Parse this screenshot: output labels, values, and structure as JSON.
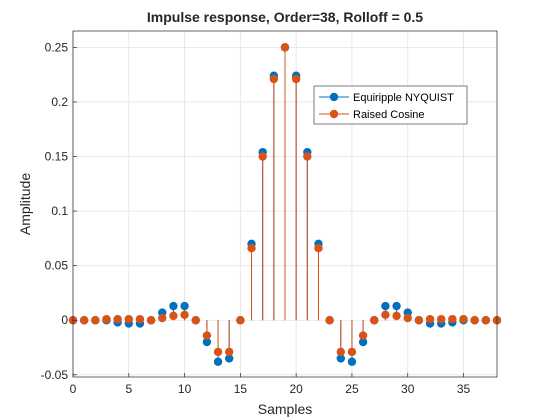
{
  "chart_data": {
    "type": "stem",
    "title": "Impulse response, Order=38, Rolloff = 0.5",
    "xlabel": "Samples",
    "ylabel": "Amplitude",
    "xlim": [
      0,
      38
    ],
    "ylim": [
      -0.052,
      0.265
    ],
    "xticks": [
      0,
      5,
      10,
      15,
      20,
      25,
      30,
      35
    ],
    "yticks": [
      -0.05,
      0,
      0.05,
      0.1,
      0.15,
      0.2,
      0.25
    ],
    "ytick_labels": [
      "-0.05",
      "0",
      "0.05",
      "0.1",
      "0.15",
      "0.2",
      "0.25"
    ],
    "grid": true,
    "legend_position": "top-right",
    "x": [
      0,
      1,
      2,
      3,
      4,
      5,
      6,
      7,
      8,
      9,
      10,
      11,
      12,
      13,
      14,
      15,
      16,
      17,
      18,
      19,
      20,
      21,
      22,
      23,
      24,
      25,
      26,
      27,
      28,
      29,
      30,
      31,
      32,
      33,
      34,
      35,
      36,
      37,
      38
    ],
    "series": [
      {
        "name": "Equiripple NYQUIST",
        "color": "#0072BD",
        "values": [
          0,
          0,
          0,
          0,
          -0.002,
          -0.003,
          -0.003,
          0,
          0.007,
          0.013,
          0.013,
          0,
          -0.02,
          -0.038,
          -0.035,
          0,
          0.07,
          0.154,
          0.224,
          0.25,
          0.224,
          0.154,
          0.07,
          0,
          -0.035,
          -0.038,
          -0.02,
          0,
          0.013,
          0.013,
          0.007,
          0,
          -0.003,
          -0.003,
          -0.002,
          0,
          0,
          0,
          0
        ]
      },
      {
        "name": "Raised Cosine",
        "color": "#D95319",
        "values": [
          0,
          0,
          0,
          0.001,
          0.001,
          0.001,
          0.001,
          0,
          0.002,
          0.004,
          0.005,
          0,
          -0.014,
          -0.029,
          -0.029,
          0,
          0.066,
          0.15,
          0.221,
          0.25,
          0.221,
          0.15,
          0.066,
          0,
          -0.029,
          -0.029,
          -0.014,
          0,
          0.005,
          0.004,
          0.002,
          0,
          0.001,
          0.001,
          0.001,
          0.001,
          0,
          0,
          0
        ]
      }
    ]
  }
}
